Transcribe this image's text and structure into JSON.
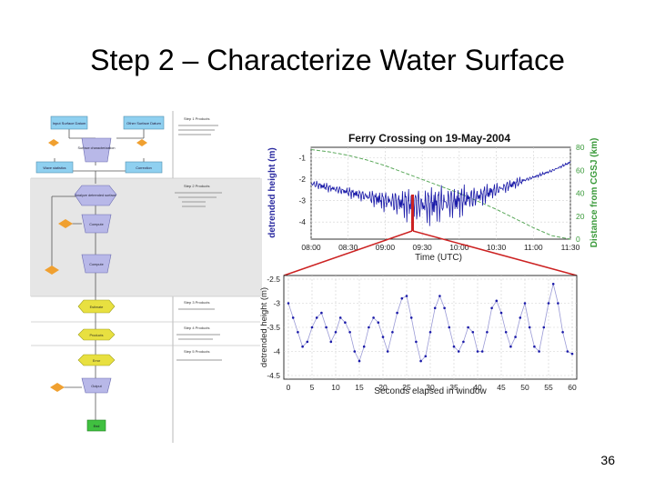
{
  "slide": {
    "title": "Step 2 – Characterize Water Surface",
    "page_number": "36"
  },
  "flowchart": {
    "top_left_box": "Input Surface Datum",
    "top_right_box": "Other Surface Datum",
    "process_top": "Surface characterization",
    "left_box": "Wave statistics",
    "right_box": "Correction",
    "step1_heading": "Step 1 Products",
    "step2_heading": "Step 2 Products",
    "step3_heading": "Step 3 Products",
    "step4_heading": "Step 4 Products",
    "step5_heading": "Step 5 Products",
    "process_mid": "Analyze detrended surface",
    "process_b": "Compute",
    "process_c": "Compute",
    "process_d": "Estimate",
    "process_e": "Products",
    "process_f": "Error",
    "process_g": "Output",
    "end_box": "End"
  },
  "chart_data": [
    {
      "type": "line",
      "title": "Ferry Crossing on 19-May-2004",
      "xlabel": "Time (UTC)",
      "ylabel": "detrended height (m)",
      "y2label": "Distance from CGSJ (km)",
      "x_ticks": [
        "08:00",
        "08:30",
        "09:00",
        "09:30",
        "10:00",
        "10:30",
        "11:00",
        "11:30"
      ],
      "y_ticks": [
        "-1",
        "-2",
        "-3",
        "-4"
      ],
      "y2_ticks": [
        "0",
        "20",
        "40",
        "60",
        "80"
      ],
      "ylim": [
        -4.8,
        -0.5
      ],
      "y2lim": [
        0,
        80
      ],
      "series": [
        {
          "name": "",
          "color": "#1a1aa8",
          "values": [
            -2.2,
            -2.4,
            -2.6,
            -2.8,
            -3.0,
            -3.1,
            -3.2,
            -3.1,
            -3.0,
            -2.8,
            -2.5,
            -2.2,
            -1.9,
            -1.6,
            -1.2
          ]
        },
        {
          "name": "",
          "color": "#5aa85a",
          "values": [
            78,
            76,
            73,
            69,
            64,
            58,
            52,
            46,
            40,
            33,
            26,
            18,
            10,
            3,
            0
          ]
        }
      ],
      "highlight_window_time": "09:30",
      "grid": true
    },
    {
      "type": "line",
      "title": "",
      "xlabel": "Seconds elapsed in window",
      "ylabel": "detrended height (m)",
      "x_ticks": [
        "0",
        "5",
        "10",
        "15",
        "20",
        "25",
        "30",
        "35",
        "40",
        "45",
        "50",
        "55",
        "60"
      ],
      "y_ticks": [
        "-2.5",
        "-3",
        "-3.5",
        "-4",
        "-4.5"
      ],
      "xlim": [
        0,
        60
      ],
      "ylim": [
        -4.5,
        -2.5
      ],
      "series": [
        {
          "name": "",
          "color": "#9a9ad6",
          "x": [
            0,
            1,
            2,
            3,
            4,
            5,
            6,
            7,
            8,
            9,
            10,
            11,
            12,
            13,
            14,
            15,
            16,
            17,
            18,
            19,
            20,
            21,
            22,
            23,
            24,
            25,
            26,
            27,
            28,
            29,
            30,
            31,
            32,
            33,
            34,
            35,
            36,
            37,
            38,
            39,
            40,
            41,
            42,
            43,
            44,
            45,
            46,
            47,
            48,
            49,
            50,
            51,
            52,
            53,
            54,
            55,
            56,
            57,
            58,
            59,
            60
          ],
          "values": [
            -3.0,
            -3.3,
            -3.6,
            -3.9,
            -3.8,
            -3.5,
            -3.3,
            -3.2,
            -3.5,
            -3.8,
            -3.6,
            -3.3,
            -3.4,
            -3.6,
            -4.0,
            -4.2,
            -3.9,
            -3.5,
            -3.3,
            -3.4,
            -3.7,
            -4.0,
            -3.6,
            -3.2,
            -2.9,
            -2.85,
            -3.3,
            -3.8,
            -4.2,
            -4.1,
            -3.6,
            -3.1,
            -2.85,
            -3.1,
            -3.5,
            -3.9,
            -4.0,
            -3.8,
            -3.5,
            -3.6,
            -4.0,
            -4.0,
            -3.6,
            -3.1,
            -2.95,
            -3.2,
            -3.6,
            -3.9,
            -3.7,
            -3.3,
            -3.0,
            -3.5,
            -3.9,
            -4.0,
            -3.5,
            -3.0,
            -2.6,
            -3.0,
            -3.6,
            -4.0,
            -4.05
          ]
        }
      ],
      "grid": true
    }
  ]
}
